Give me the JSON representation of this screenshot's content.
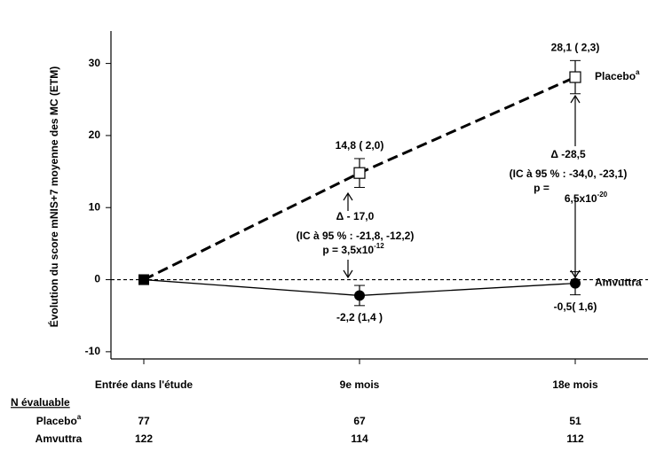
{
  "chart_data": {
    "type": "line",
    "y_label": "Évolution du score mNIS+7 moyenne des MC (ETM)",
    "categories": [
      "Entrée dans l'étude",
      "9e mois",
      "18e mois"
    ],
    "ylim": [
      -11,
      34.5
    ],
    "yticks": [
      -10,
      0,
      10,
      20,
      30
    ],
    "reference_line": 0,
    "series": [
      {
        "name": "Placebo",
        "name_sup": "a",
        "color": "#000000",
        "dash": true,
        "marker": "open-square",
        "values": [
          0,
          14.8,
          28.1
        ],
        "errors": [
          null,
          2.0,
          2.3
        ],
        "value_labels": [
          null,
          "14,8 ( 2,0)",
          "28,1 ( 2,3)"
        ]
      },
      {
        "name": "Amvuttra",
        "color": "#000000",
        "dash": false,
        "marker": "filled-circle",
        "values": [
          0,
          -2.2,
          -0.5
        ],
        "errors": [
          null,
          1.4,
          1.6
        ],
        "value_labels": [
          null,
          "-2,2 (1,4 )",
          "-0,5( 1,6)"
        ]
      }
    ],
    "annotations": [
      {
        "lines": [
          "Δ - 17,0",
          "(IC à 95 % : -21,8, -12,2)"
        ],
        "p": "p  =  3,5x10",
        "p_sup": "-12"
      },
      {
        "lines": [
          "Δ -28,5",
          "(IC à 95 % : -34,0, -23,1)"
        ],
        "p": "p  =",
        "p_value": "6,5x10",
        "p_sup": "-20"
      }
    ],
    "n_table": {
      "title": "N évaluable",
      "rows": [
        {
          "label": "Placebo",
          "sup": "a",
          "values": [
            77,
            67,
            51
          ]
        },
        {
          "label": "Amvuttra",
          "values": [
            122,
            114,
            112
          ]
        }
      ]
    }
  }
}
